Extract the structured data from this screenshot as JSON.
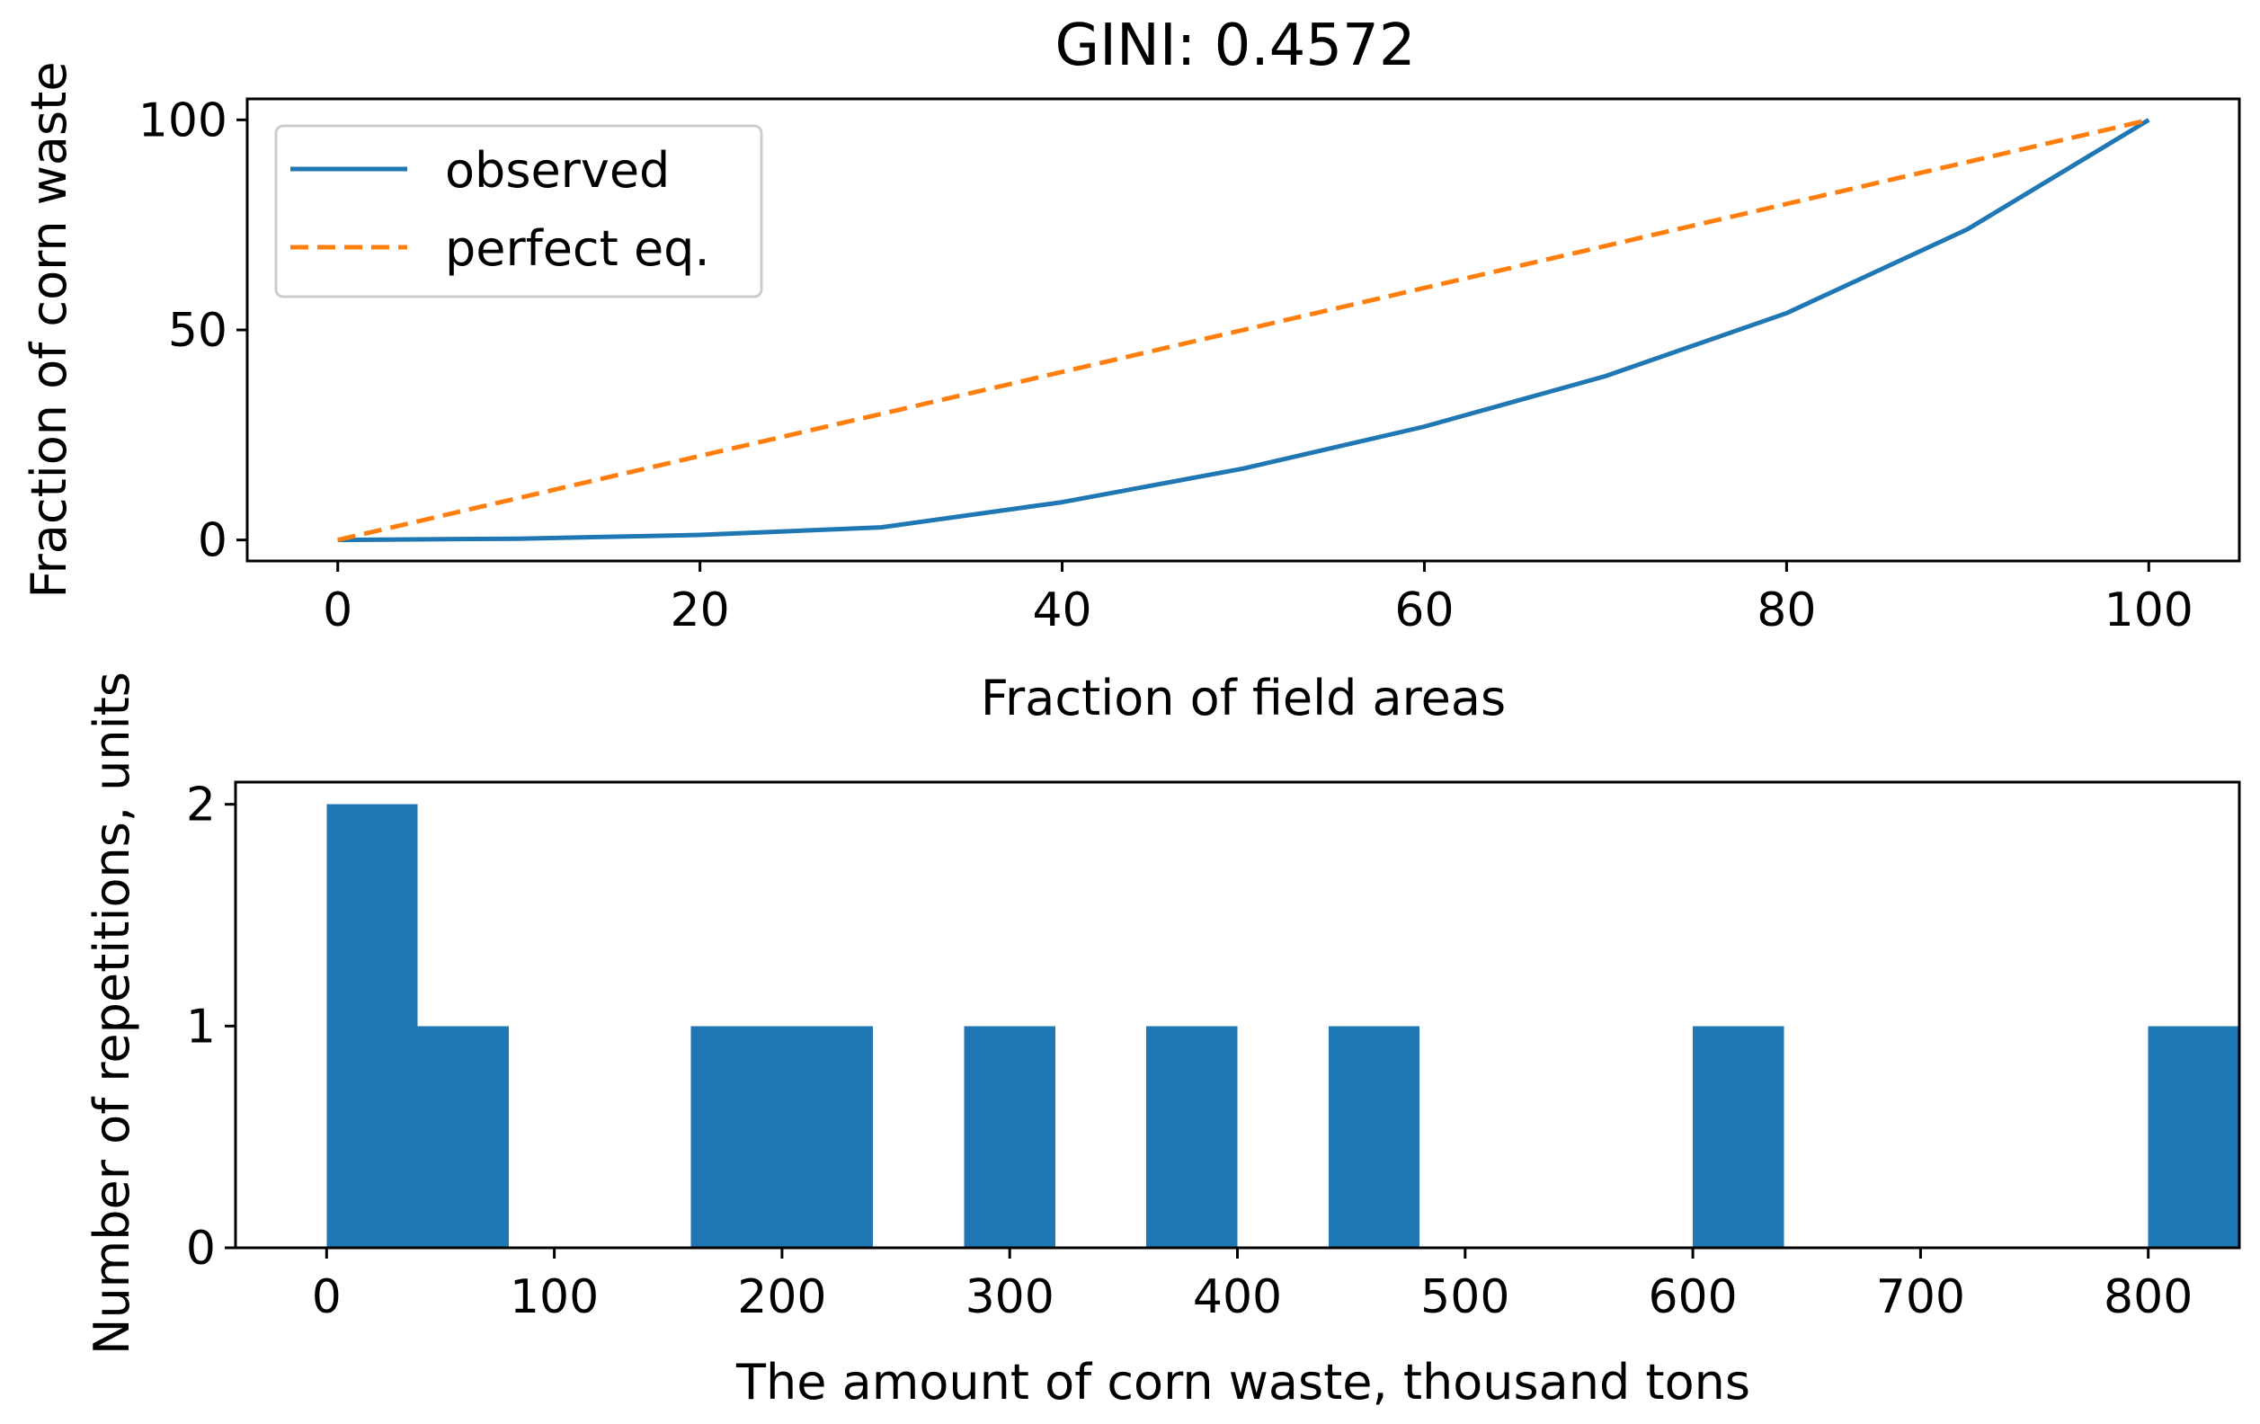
{
  "colors": {
    "observed": "#1f77b4",
    "perfect": "#ff7f0e",
    "bars": "#1f77b4",
    "axes": "#000000",
    "legend_border": "#cccccc"
  },
  "chart_data": [
    {
      "type": "line",
      "title": "GINI: 0.4572",
      "xlabel": "Fraction of field areas",
      "ylabel": "Fraction of corn waste",
      "xlim": [
        -5,
        105
      ],
      "ylim": [
        -5,
        105
      ],
      "xticks": [
        0,
        20,
        40,
        60,
        80,
        100
      ],
      "yticks": [
        0,
        50,
        100
      ],
      "legend": {
        "location": "upper-left"
      },
      "series": [
        {
          "name": "observed",
          "style": "solid",
          "x": [
            0,
            10,
            20,
            30,
            40,
            50,
            60,
            70,
            80,
            90,
            100
          ],
          "y": [
            0,
            0.3,
            1.2,
            3.0,
            9.0,
            17.0,
            27.0,
            39.0,
            54.0,
            74.0,
            100
          ]
        },
        {
          "name": "perfect eq.",
          "style": "dashed",
          "x": [
            0,
            100
          ],
          "y": [
            0,
            100
          ]
        }
      ]
    },
    {
      "type": "bar",
      "subtype": "histogram",
      "xlabel": "The amount of corn waste, thousand tons",
      "ylabel": "Number of repetitions, units",
      "xlim": [
        -40,
        840
      ],
      "ylim": [
        0,
        2.1
      ],
      "xticks": [
        0,
        100,
        200,
        300,
        400,
        500,
        600,
        700,
        800
      ],
      "yticks": [
        0,
        1,
        2
      ],
      "bin_start": 0,
      "bin_width": 40,
      "counts": [
        2,
        1,
        0,
        0,
        1,
        1,
        0,
        1,
        0,
        1,
        0,
        1,
        0,
        0,
        0,
        1,
        0,
        0,
        0,
        0,
        1
      ]
    }
  ]
}
